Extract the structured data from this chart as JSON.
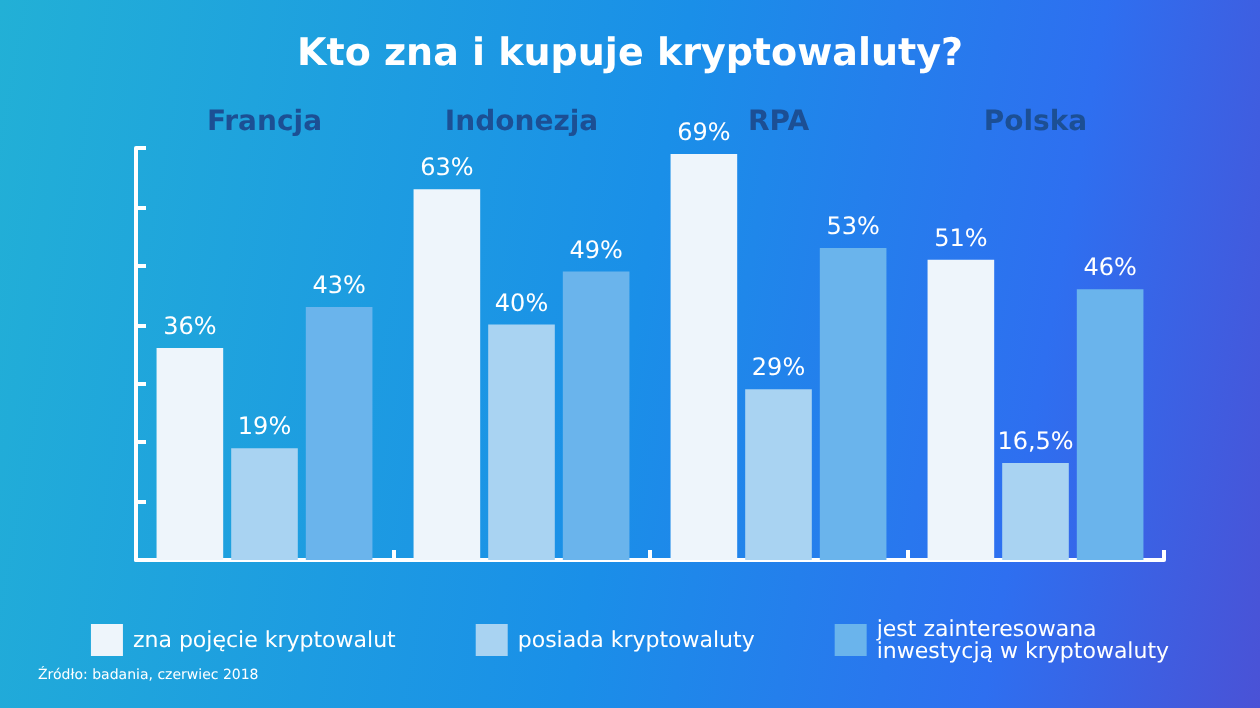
{
  "chart_data": {
    "type": "bar",
    "title": "Kto zna i kupuje kryptowaluty?",
    "categories": [
      "Francja",
      "Indonezja",
      "RPA",
      "Polska"
    ],
    "series": [
      {
        "name": "zna pojęcie kryptowalut",
        "color": "#eef5fb",
        "values": [
          36,
          63,
          69,
          51
        ],
        "value_labels": [
          "36%",
          "63%",
          "69%",
          "51%"
        ]
      },
      {
        "name": "posiada kryptowaluty",
        "color": "#a9d3f2",
        "values": [
          19,
          40,
          29,
          16.5
        ],
        "value_labels": [
          "19%",
          "40%",
          "29%",
          "16,5%"
        ]
      },
      {
        "name": "jest zainteresowana inwestycją w kryptowaluty",
        "color": "#6ab4ec",
        "values": [
          43,
          49,
          53,
          46
        ],
        "value_labels": [
          "43%",
          "49%",
          "53%",
          "46%"
        ]
      }
    ],
    "tick_labels": "x",
    "grid": false,
    "legend": "bottom",
    "annotations": [
      "Źródło: badania, czerwiec 2018"
    ]
  }
}
